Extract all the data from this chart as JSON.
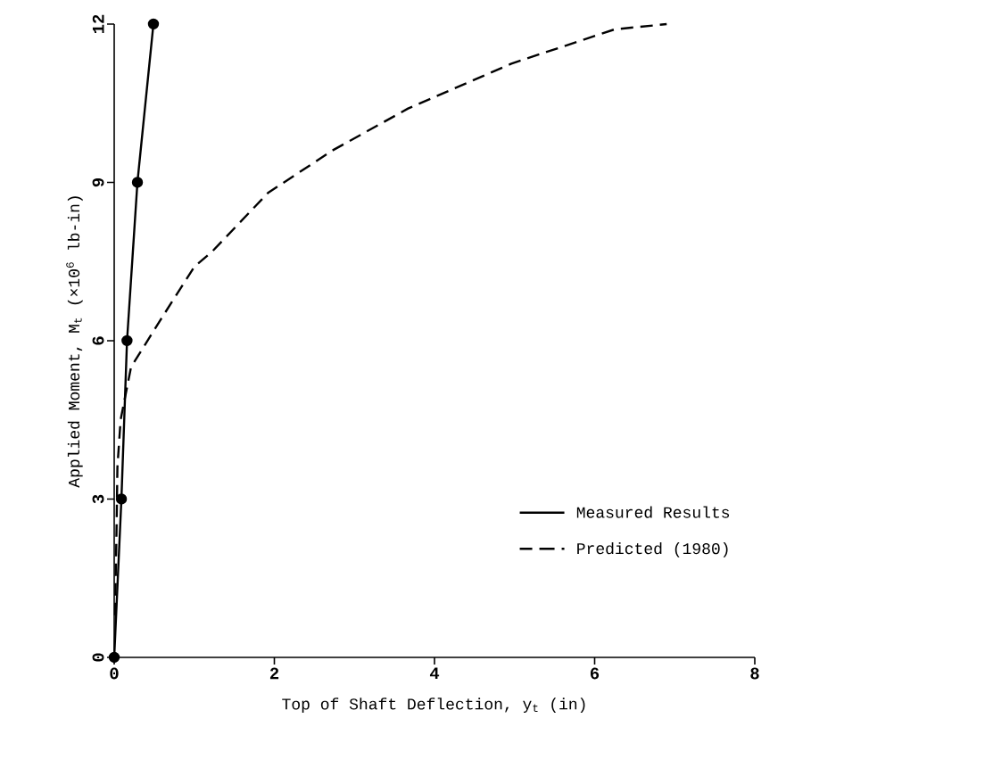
{
  "chart_data": {
    "type": "line",
    "xlabel": "Top of Shaft Deflection, y$_{t}$  (in)",
    "ylabel": "Applied Moment, M$_{t}$  (×10$^{6}$ lb-in)",
    "xlim": [
      0,
      8
    ],
    "ylim": [
      0,
      12
    ],
    "xticks": [
      0,
      2,
      4,
      6,
      8
    ],
    "yticks": [
      0,
      3,
      6,
      9,
      12
    ],
    "legend": "bottom right",
    "grid": false,
    "series": [
      {
        "name": "Measured Results",
        "color": "#000000",
        "marker": "circle",
        "line_style": "solid",
        "x": [
          0,
          0.09,
          0.16,
          0.29,
          0.49
        ],
        "values": [
          0,
          3,
          6,
          9,
          12
        ]
      },
      {
        "name": "Predicted (1980)",
        "color": "#000000",
        "marker": "none",
        "line_style": "dashed",
        "x": [
          0.01,
          0.03,
          0.04,
          0.08,
          0.21,
          0.58,
          1.0,
          1.23,
          1.92,
          2.72,
          3.67,
          4.96,
          6.25,
          6.9
        ],
        "values": [
          0.8,
          2.5,
          3.6,
          4.5,
          5.5,
          6.4,
          7.4,
          7.7,
          8.8,
          9.6,
          10.4,
          11.25,
          11.9,
          12.0
        ]
      }
    ]
  }
}
